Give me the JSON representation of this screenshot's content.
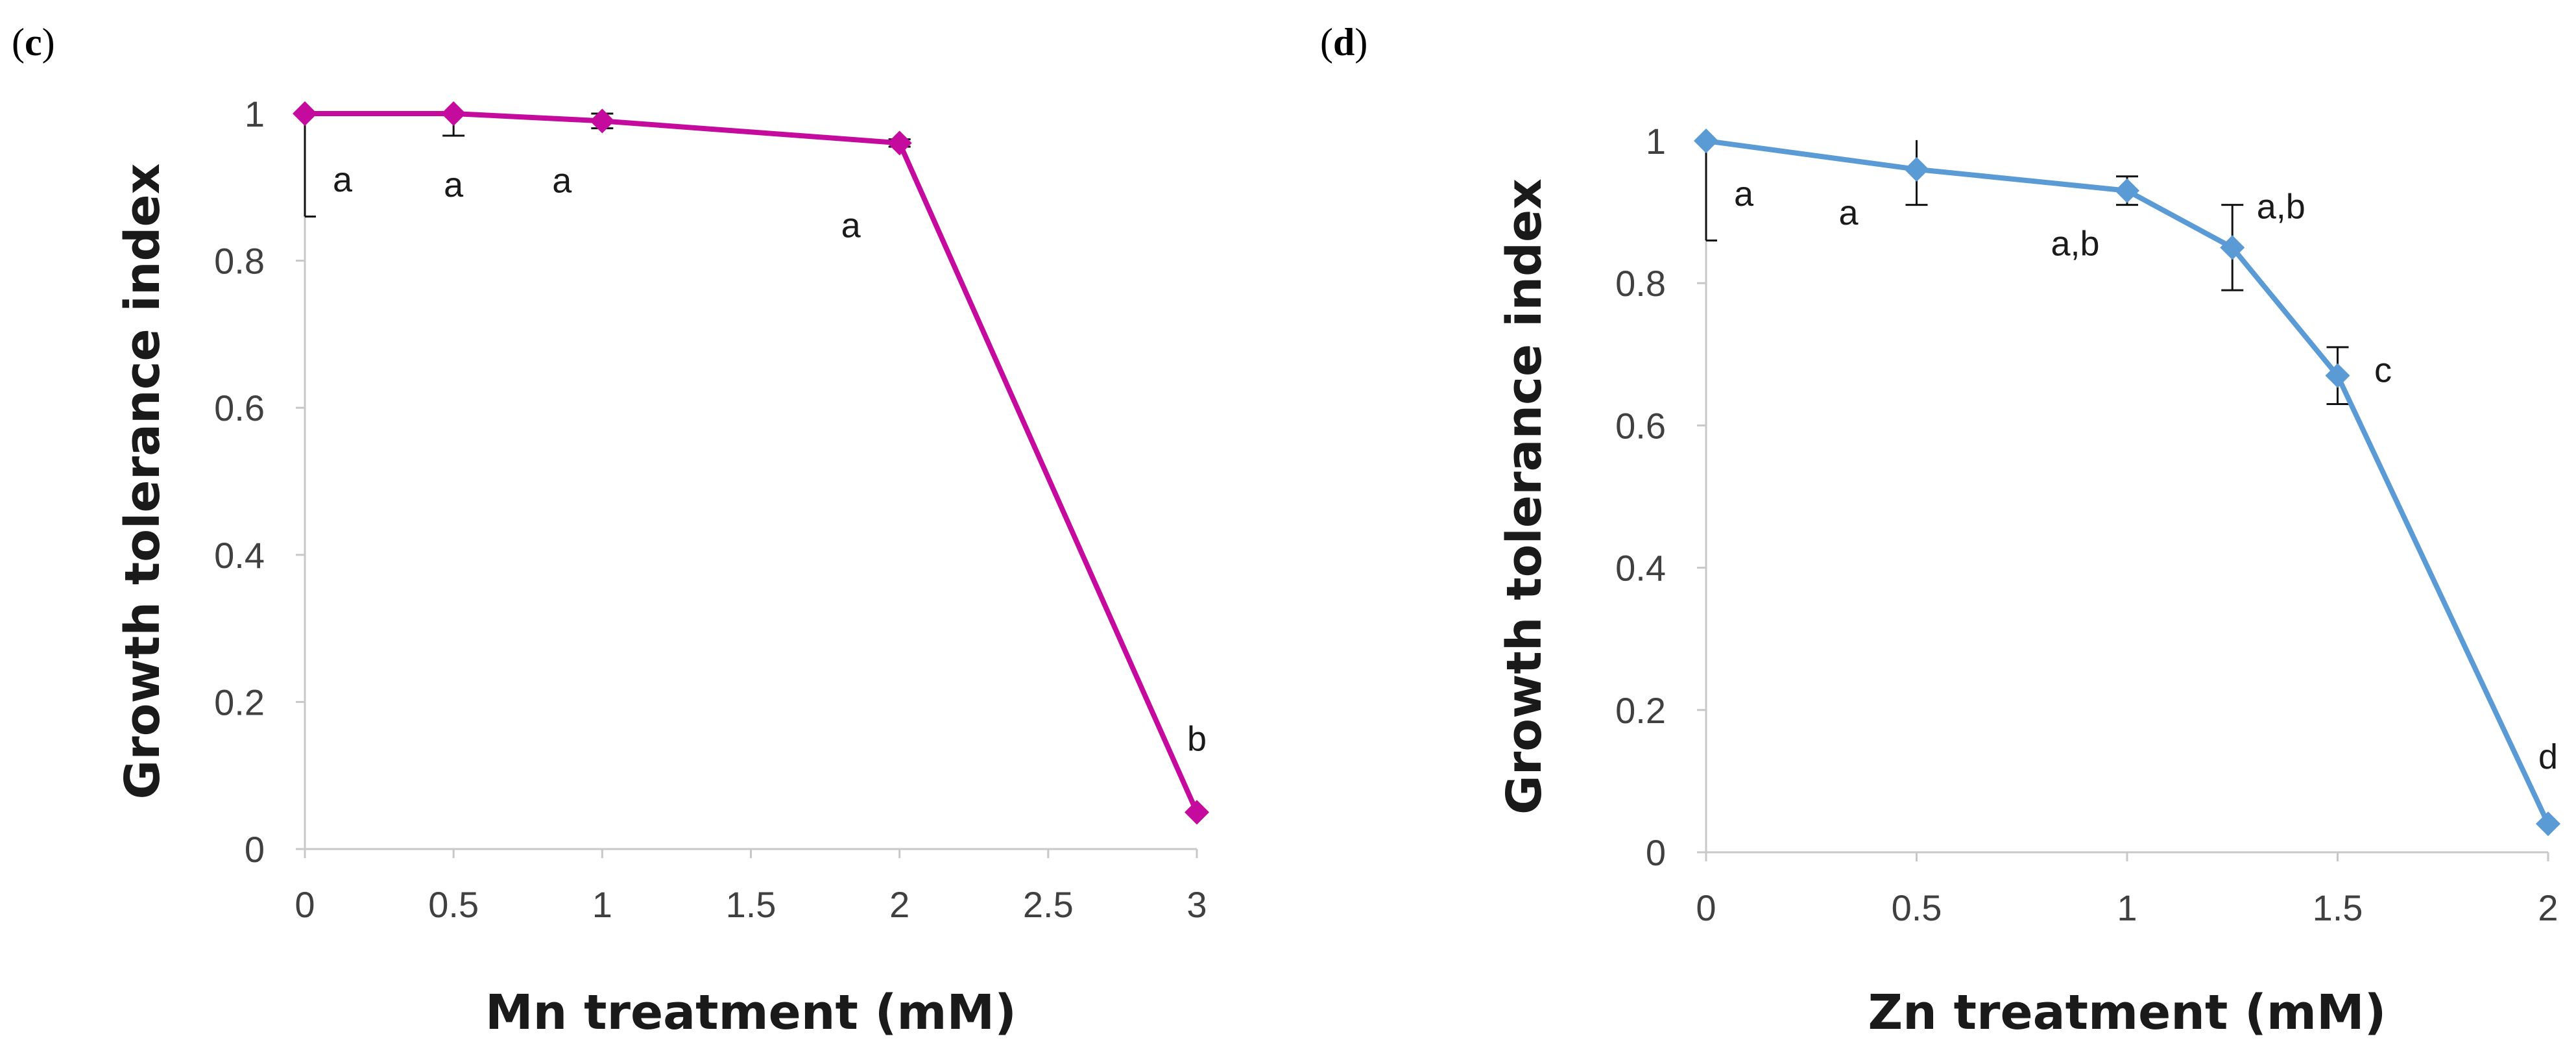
{
  "chart_data": [
    {
      "type": "line",
      "panel_label": "c",
      "xlabel": "Mn treatment (mM)",
      "ylabel": "Growth tolerance index",
      "xlim": [
        0,
        3
      ],
      "ylim": [
        0,
        1
      ],
      "xticks": [
        0,
        0.5,
        1,
        1.5,
        2,
        2.5,
        3
      ],
      "xtick_labels": [
        "0",
        "0.5",
        "1",
        "1.5",
        "2",
        "2.5",
        "3"
      ],
      "yticks": [
        0,
        0.2,
        0.4,
        0.6,
        0.8,
        1
      ],
      "ytick_labels": [
        "0",
        "0.2",
        "0.4",
        "0.6",
        "0.8",
        "1"
      ],
      "color": "#C50B9E",
      "series": [
        {
          "name": "Mn",
          "x": [
            0,
            0.5,
            1,
            2,
            3
          ],
          "y": [
            1.0,
            1.0,
            0.99,
            0.96,
            0.05
          ],
          "err": [
            0.14,
            0.03,
            0.01,
            0.005,
            0.0
          ],
          "labels": [
            "a",
            "a",
            "a",
            "a",
            "b"
          ]
        }
      ],
      "grid": false,
      "legend": "none"
    },
    {
      "type": "line",
      "panel_label": "d",
      "xlabel": "Zn treatment (mM)",
      "ylabel": "Growth tolerance index",
      "xlim": [
        0,
        2
      ],
      "ylim": [
        0,
        1
      ],
      "xticks": [
        0,
        0.5,
        1,
        1.5,
        2
      ],
      "xtick_labels": [
        "0",
        "0.5",
        "1",
        "1.5",
        "2"
      ],
      "yticks": [
        0,
        0.2,
        0.4,
        0.6,
        0.8,
        1
      ],
      "ytick_labels": [
        "0",
        "0.2",
        "0.4",
        "0.6",
        "0.8",
        "1"
      ],
      "color": "#5B9BD5",
      "series": [
        {
          "name": "Zn",
          "x": [
            0,
            0.5,
            1,
            1.25,
            1.5,
            2
          ],
          "y": [
            1.0,
            0.96,
            0.93,
            0.85,
            0.67,
            0.04
          ],
          "err": [
            0.14,
            0.05,
            0.02,
            0.06,
            0.04,
            0.0
          ],
          "labels": [
            "a",
            "a",
            "a,b",
            "a,b",
            "c",
            "d"
          ]
        }
      ],
      "grid": false,
      "legend": "none"
    }
  ]
}
